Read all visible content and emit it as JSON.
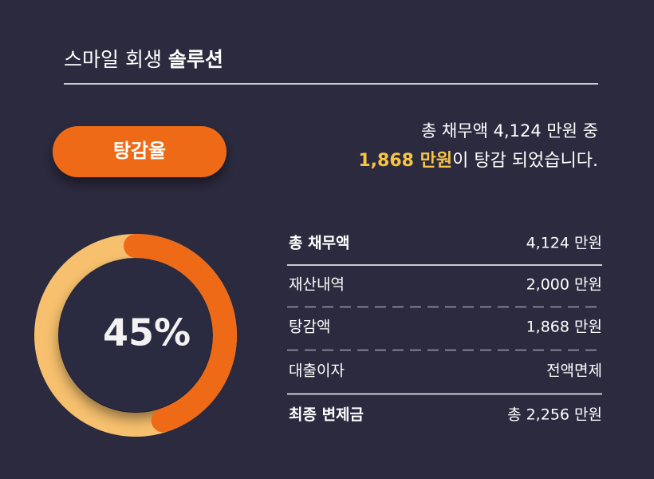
{
  "header": {
    "title_regular": "스마일 회생",
    "title_bold": "솔루션"
  },
  "badge": "탕감율",
  "donut": {
    "value": 45,
    "label": "45%",
    "color": "#ee6a17",
    "track_color": "#f6c06e",
    "max": 100
  },
  "summary": {
    "line1": "총 채무액 4,124 만원 중",
    "highlight": "1,868 만원",
    "rest": "이 탕감 되었습니다."
  },
  "table": {
    "rows": [
      [
        "총 채무액",
        "4,124 만원"
      ],
      [
        "재산내역",
        "2,000 만원"
      ],
      [
        "탕감액",
        "1,868 만원"
      ],
      [
        "대출이자",
        "전액면제"
      ],
      [
        "최종 변제금",
        "총 2,256 만원"
      ]
    ]
  }
}
